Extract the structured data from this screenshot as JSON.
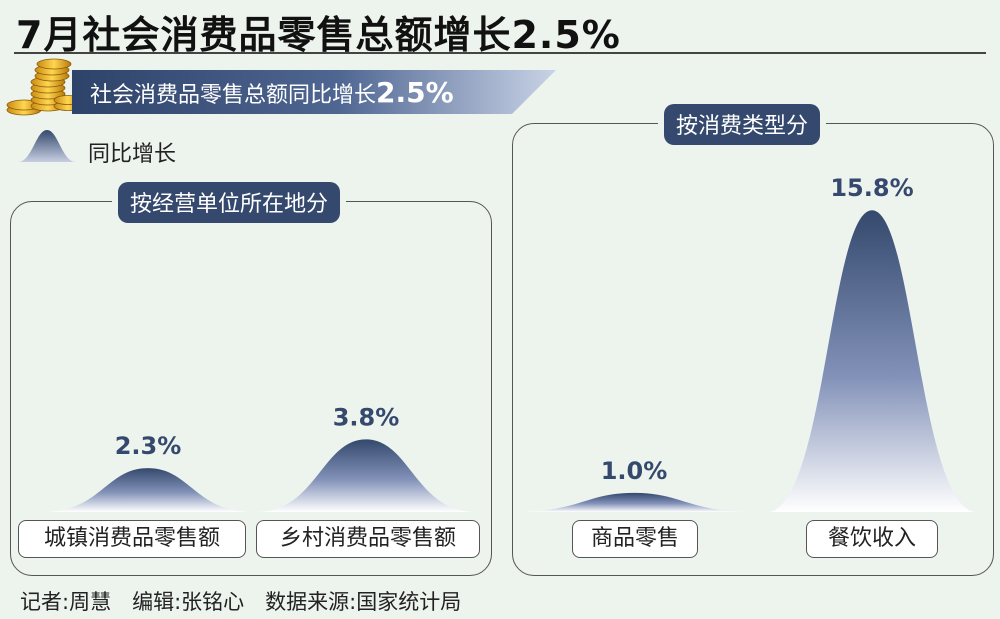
{
  "title": "7月社会消费品零售总额增长2.5%",
  "banner": {
    "text": "社会消费品零售总额同比增长",
    "value": "2.5%"
  },
  "legend": {
    "label": "同比增长"
  },
  "colors": {
    "curve_top": "#34496d",
    "curve_bottom": "#ffffff",
    "tag_bg": "#34496d",
    "background": "#edf3ed"
  },
  "footer": "记者:周慧　编辑:张铭心　数据来源:国家统计局",
  "chart_data": [
    {
      "type": "area",
      "title": "按经营单位所在地分",
      "categories": [
        "城镇消费品零售额",
        "乡村消费品零售额"
      ],
      "values": [
        2.3,
        3.8
      ],
      "value_labels": [
        "2.3%",
        "3.8%"
      ],
      "unit": "%"
    },
    {
      "type": "area",
      "title": "按消费类型分",
      "categories": [
        "商品零售",
        "餐饮收入"
      ],
      "values": [
        1.0,
        15.8
      ],
      "value_labels": [
        "1.0%",
        "15.8%"
      ],
      "unit": "%"
    }
  ]
}
